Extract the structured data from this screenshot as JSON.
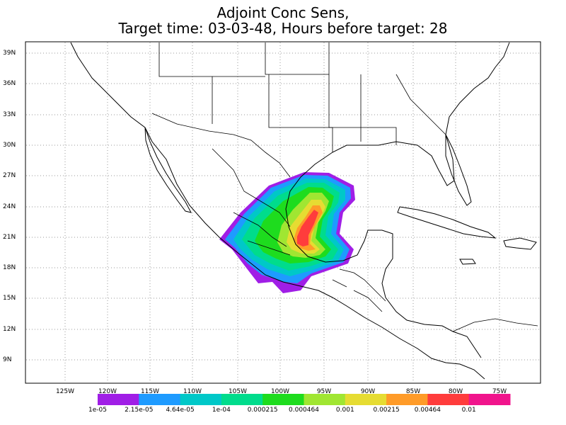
{
  "title_line1": "Adjoint Conc Sens,",
  "title_line2": "Target time: 03-03-48, Hours before target: 28",
  "lat_labels": [
    "39N",
    "36N",
    "33N",
    "30N",
    "27N",
    "24N",
    "21N",
    "18N",
    "15N",
    "12N",
    "9N"
  ],
  "lon_labels": [
    "125W",
    "120W",
    "115W",
    "110W",
    "105W",
    "100W",
    "95W",
    "90W",
    "85W",
    "80W",
    "75W"
  ],
  "colorbar": {
    "colors": [
      "#a01ee6",
      "#1e9bff",
      "#00c8c8",
      "#00dc8c",
      "#1edc1e",
      "#a0e632",
      "#e6dc32",
      "#ff9b28",
      "#ff3c3c",
      "#f0148c"
    ],
    "labels": [
      "1e-05",
      "2.15e-05",
      "4.64e-05",
      "1e-04",
      "0.000215",
      "0.000464",
      "0.001",
      "0.00215",
      "0.00464",
      "0.01"
    ]
  },
  "map": {
    "lon_range": [
      -129,
      -68
    ],
    "lat_range": [
      7,
      40
    ]
  }
}
